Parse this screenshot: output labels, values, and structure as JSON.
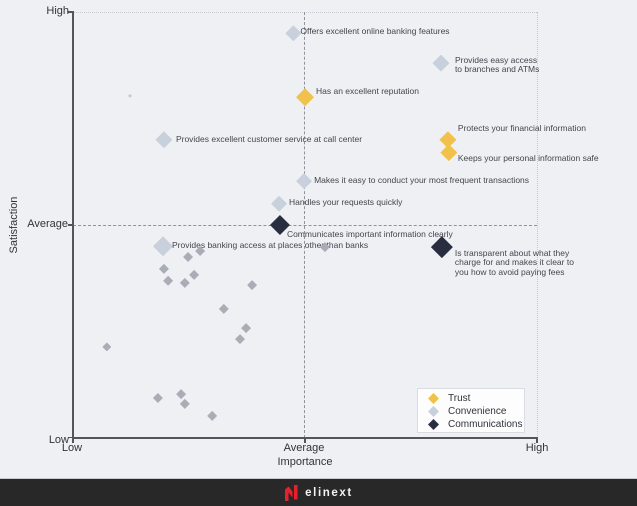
{
  "page": {
    "background": "#EFF0F4"
  },
  "chart_data": {
    "type": "scatter",
    "title": "",
    "xlabel": "Importance",
    "ylabel": "Satisfaction",
    "x_tick_labels": [
      "Low",
      "Average",
      "High"
    ],
    "y_tick_labels": [
      "High",
      "Average",
      "Low"
    ],
    "x_range": [
      0,
      100
    ],
    "y_range": [
      0,
      100
    ],
    "grid": {
      "x_average_guide": 50,
      "y_average_guide": 50,
      "style": "dashed"
    },
    "legend": {
      "position": "bottom-right",
      "entries": [
        {
          "label": "Trust",
          "color": "#F0C24B"
        },
        {
          "label": "Convenience",
          "color": "#C8D0DC"
        },
        {
          "label": "Communications",
          "color": "#282E3F"
        }
      ]
    },
    "series": [
      {
        "name": "Trust",
        "key": "trust",
        "color": "#F0C24B",
        "points": [
          {
            "label_lines": [
              "Has an excellent reputation"
            ],
            "x": 50.0,
            "y": 80.0,
            "size": 18,
            "label_dx": 11,
            "label_dy": -5
          },
          {
            "label_lines": [
              "Protects your financial information"
            ],
            "x": 80.8,
            "y": 70.0,
            "size": 17,
            "label_dx": 10,
            "label_dy": -11
          },
          {
            "label_lines": [
              "Keeps your personal information safe"
            ],
            "x": 81.0,
            "y": 67.0,
            "size": 17,
            "label_dx": 9,
            "label_dy": 6
          }
        ]
      },
      {
        "name": "Convenience",
        "key": "convenience",
        "color": "#C8D0DC",
        "points": [
          {
            "label_lines": [
              "Offers excellent online banking features"
            ],
            "x": 47.5,
            "y": 95.0,
            "size": 16,
            "label_dx": 7,
            "label_dy": -2
          },
          {
            "label_lines": [
              "Provides easy access",
              "to branches and ATMs"
            ],
            "x": 79.3,
            "y": 88.0,
            "size": 17,
            "label_dx": 14,
            "label_dy": 2
          },
          {
            "label_lines": [
              "Provides excellent customer service at call center"
            ],
            "x": 19.6,
            "y": 70.0,
            "size": 17,
            "label_dx": 12,
            "label_dy": 0
          },
          {
            "label_lines": [
              "Makes it easy to conduct your most frequent transactions"
            ],
            "x": 49.8,
            "y": 60.3,
            "size": 16,
            "label_dx": 10,
            "label_dy": 0
          },
          {
            "label_lines": [
              "Handles your requests quickly"
            ],
            "x": 44.4,
            "y": 55.0,
            "size": 16,
            "label_dx": 10,
            "label_dy": -1
          },
          {
            "label_lines": [
              "Provides banking access at places other than banks"
            ],
            "x": 19.4,
            "y": 45.0,
            "size": 20,
            "label_dx": 9,
            "label_dy": -1
          }
        ]
      },
      {
        "name": "Communications",
        "key": "communications",
        "color": "#282E3F",
        "points": [
          {
            "label_lines": [
              "Communicates important information clearly"
            ],
            "x": 44.6,
            "y": 50.0,
            "size": 20,
            "label_dx": 7,
            "label_dy": 10
          },
          {
            "label_lines": [
              "Is transparent about what they",
              "charge for and makes it clear to",
              "you how to avoid paying fees"
            ],
            "x": 79.5,
            "y": 44.8,
            "size": 22,
            "label_dx": 13,
            "label_dy": 16
          }
        ]
      },
      {
        "name": "Unlabeled attributes",
        "key": "unlabeled",
        "color": "#A9ADB5",
        "points": [
          {
            "x": 54.3,
            "y": 44.8,
            "size": 10
          },
          {
            "x": 27.4,
            "y": 43.9,
            "size": 10
          },
          {
            "x": 24.8,
            "y": 42.5,
            "size": 10
          },
          {
            "x": 19.6,
            "y": 39.7,
            "size": 10
          },
          {
            "x": 26.1,
            "y": 38.3,
            "size": 10
          },
          {
            "x": 20.5,
            "y": 36.9,
            "size": 10
          },
          {
            "x": 24.1,
            "y": 36.4,
            "size": 10
          },
          {
            "x": 38.6,
            "y": 35.9,
            "size": 10
          },
          {
            "x": 32.5,
            "y": 30.3,
            "size": 10
          },
          {
            "x": 37.3,
            "y": 25.8,
            "size": 10
          },
          {
            "x": 36.0,
            "y": 23.2,
            "size": 10
          },
          {
            "x": 7.3,
            "y": 21.4,
            "size": 9
          },
          {
            "x": 23.3,
            "y": 10.3,
            "size": 10
          },
          {
            "x": 18.3,
            "y": 9.4,
            "size": 10
          },
          {
            "x": 24.1,
            "y": 8.0,
            "size": 10
          },
          {
            "x": 30.0,
            "y": 5.2,
            "size": 10
          },
          {
            "x": 12.3,
            "y": 80.3,
            "size": 4,
            "color": "#C6C9D0"
          }
        ]
      }
    ]
  },
  "footer": {
    "brand": "elinext",
    "background": "#282828",
    "logo_color": "#E6212E"
  }
}
